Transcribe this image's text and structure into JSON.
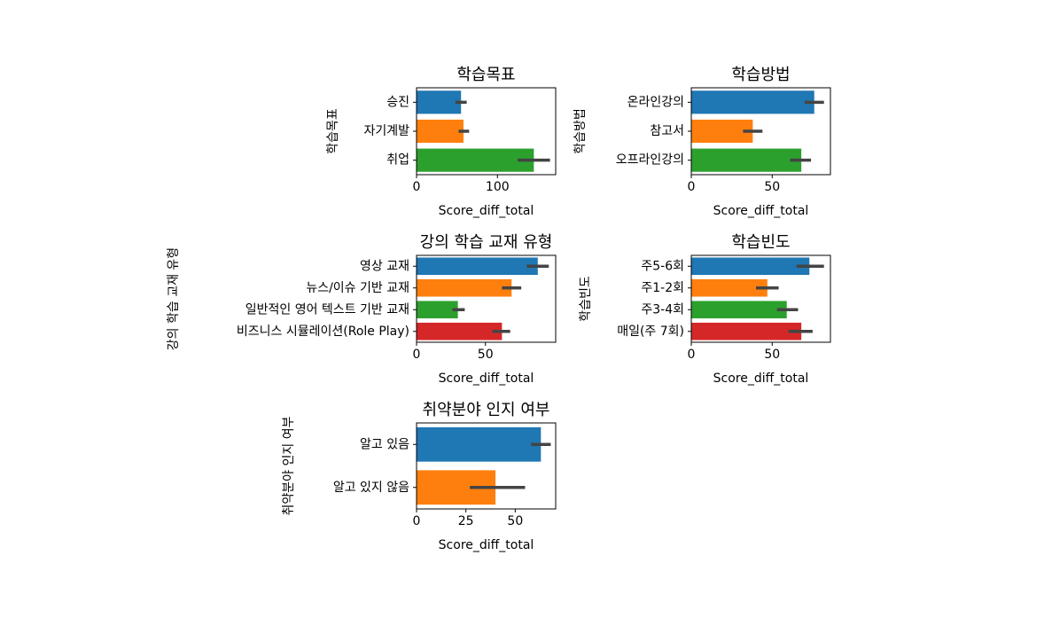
{
  "chart_data": [
    {
      "type": "bar",
      "orientation": "horizontal",
      "title": "학습목표",
      "xlabel": "Score_diff_total",
      "ylabel": "학습목표",
      "categories": [
        "승진",
        "자기계발",
        "취업"
      ],
      "values": [
        55,
        58,
        145
      ],
      "error_low": [
        48,
        52,
        125
      ],
      "error_high": [
        62,
        65,
        165
      ],
      "xlim": [
        0,
        172
      ],
      "xticks": [
        0,
        100
      ],
      "colors": [
        "#1f77b4",
        "#ff7f0e",
        "#2ca02c"
      ]
    },
    {
      "type": "bar",
      "orientation": "horizontal",
      "title": "학습방법",
      "xlabel": "Score_diff_total",
      "ylabel": "학습방법",
      "categories": [
        "온라인강의",
        "참고서",
        "오프라인강의"
      ],
      "values": [
        76,
        38,
        68
      ],
      "error_low": [
        70,
        32,
        61
      ],
      "error_high": [
        82,
        44,
        74
      ],
      "xlim": [
        0,
        86
      ],
      "xticks": [
        0,
        50
      ],
      "colors": [
        "#1f77b4",
        "#ff7f0e",
        "#2ca02c"
      ]
    },
    {
      "type": "bar",
      "orientation": "horizontal",
      "title": "강의 학습 교재 유형",
      "xlabel": "Score_diff_total",
      "ylabel": "강의 학습 교재 유형",
      "categories": [
        "영상 교재",
        "뉴스/이슈 기반 교재",
        "일반적인 영어 텍스트 기반 교재",
        "비즈니스 시뮬레이션(Role Play)"
      ],
      "values": [
        88,
        69,
        30,
        62
      ],
      "error_low": [
        80,
        62,
        26,
        55
      ],
      "error_high": [
        96,
        76,
        35,
        68
      ],
      "xlim": [
        0,
        101
      ],
      "xticks": [
        0,
        50
      ],
      "colors": [
        "#1f77b4",
        "#ff7f0e",
        "#2ca02c",
        "#d62728"
      ]
    },
    {
      "type": "bar",
      "orientation": "horizontal",
      "title": "학습빈도",
      "xlabel": "Score_diff_total",
      "ylabel": "학습빈도",
      "categories": [
        "주5-6회",
        "주1-2회",
        "주3-4회",
        "매일(주 7회)"
      ],
      "values": [
        73,
        47,
        59,
        68
      ],
      "error_low": [
        65,
        40,
        53,
        60
      ],
      "error_high": [
        82,
        54,
        66,
        75
      ],
      "xlim": [
        0,
        86
      ],
      "xticks": [
        0,
        50
      ],
      "colors": [
        "#1f77b4",
        "#ff7f0e",
        "#2ca02c",
        "#d62728"
      ]
    },
    {
      "type": "bar",
      "orientation": "horizontal",
      "title": "취약분야 인지 여부",
      "xlabel": "Score_diff_total",
      "ylabel": "취약분야 인지 여부",
      "categories": [
        "알고 있음",
        "알고 있지 않음"
      ],
      "values": [
        63,
        40
      ],
      "error_low": [
        58,
        27
      ],
      "error_high": [
        68,
        55
      ],
      "xlim": [
        0,
        70.5
      ],
      "xticks": [
        0,
        25,
        50
      ],
      "colors": [
        "#1f77b4",
        "#ff7f0e"
      ]
    }
  ]
}
